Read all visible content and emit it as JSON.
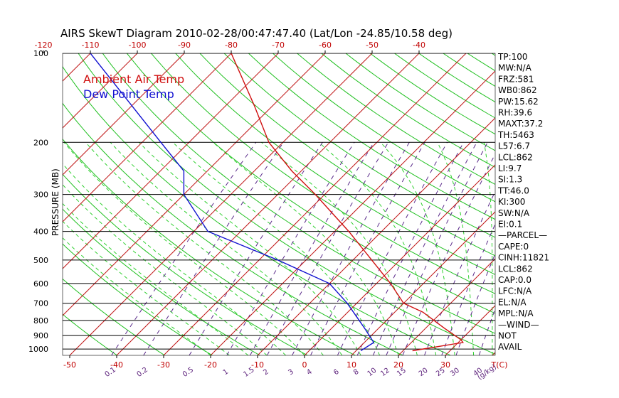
{
  "title": "AIRS SkewT Diagram 2010-02-28/00:47:47.40 (Lat/Lon -24.85/10.58 deg)",
  "legend": [
    {
      "label": "Ambient Air Temp",
      "color": "#d01010"
    },
    {
      "label": "Dew Point Temp",
      "color": "#1010d0"
    }
  ],
  "colors": {
    "isotherm": "#c01818",
    "dry_adiabat": "#20c020",
    "moist_adiabat": "#30d030",
    "mixing_ratio": "#5a2a8a",
    "isobar": "#000000"
  },
  "chart_data": {
    "type": "line",
    "title": "AIRS SkewT Diagram 2010-02-28/00:47:47.40 (Lat/Lon -24.85/10.58 deg)",
    "ylabel": "PRESSURE (MB)",
    "xlabel": "T(C)",
    "y_scale": "log",
    "ylim": [
      1050,
      100
    ],
    "pressure_ticks": [
      100,
      200,
      300,
      400,
      500,
      600,
      700,
      800,
      900,
      1000
    ],
    "top_temp_ticks": [
      -120,
      -110,
      -100,
      -90,
      -80,
      -70,
      -60,
      -50,
      -40
    ],
    "bottom_temp_ticks": [
      -50,
      -40,
      -30,
      -20,
      -10,
      0,
      10,
      20,
      30
    ],
    "temp_axis_label": "T(C)",
    "mixing_ratio_ticks": [
      "0.1",
      "0.2",
      "0.5",
      "1",
      "1.5",
      "2",
      "3",
      "4",
      "6",
      "8",
      "10",
      "12",
      "15",
      "20",
      "25",
      "30",
      "40"
    ],
    "mixing_ratio_unit": "g/kg",
    "series": [
      {
        "name": "Ambient Air Temp",
        "color": "#d01010",
        "pressure": [
          1013,
          950,
          930,
          850,
          750,
          700,
          600,
          500,
          400,
          300,
          250,
          200,
          150,
          100
        ],
        "values": [
          22,
          31,
          30,
          24,
          16,
          10,
          3,
          -6,
          -17,
          -32,
          -42,
          -53,
          -64,
          -80
        ]
      },
      {
        "name": "Dew Point Temp",
        "color": "#1010d0",
        "pressure": [
          1013,
          950,
          850,
          700,
          600,
          500,
          400,
          300,
          250,
          200,
          100
        ],
        "values": [
          11,
          12,
          7,
          -2,
          -10,
          -26,
          -47,
          -60,
          -65,
          -76,
          -110
        ]
      }
    ],
    "indices": [
      "TP:100",
      "MW:N/A",
      "FRZ:581",
      "WB0:862",
      "PW:15.62",
      "RH:39.6",
      "MAXT:37.2",
      "TH:5463",
      "L57:6.7",
      "LCL:862",
      "LI:9.7",
      "SI:1.3",
      "TT:46.0",
      "KI:300",
      "SW:N/A",
      "EI:0.1",
      "—PARCEL—",
      "CAPE:0",
      "CINH:11821",
      "LCL:862",
      "CAP:0.0",
      "LFC:N/A",
      "EL:N/A",
      "MPL:N/A",
      "—WIND—",
      "NOT",
      "AVAIL"
    ]
  }
}
